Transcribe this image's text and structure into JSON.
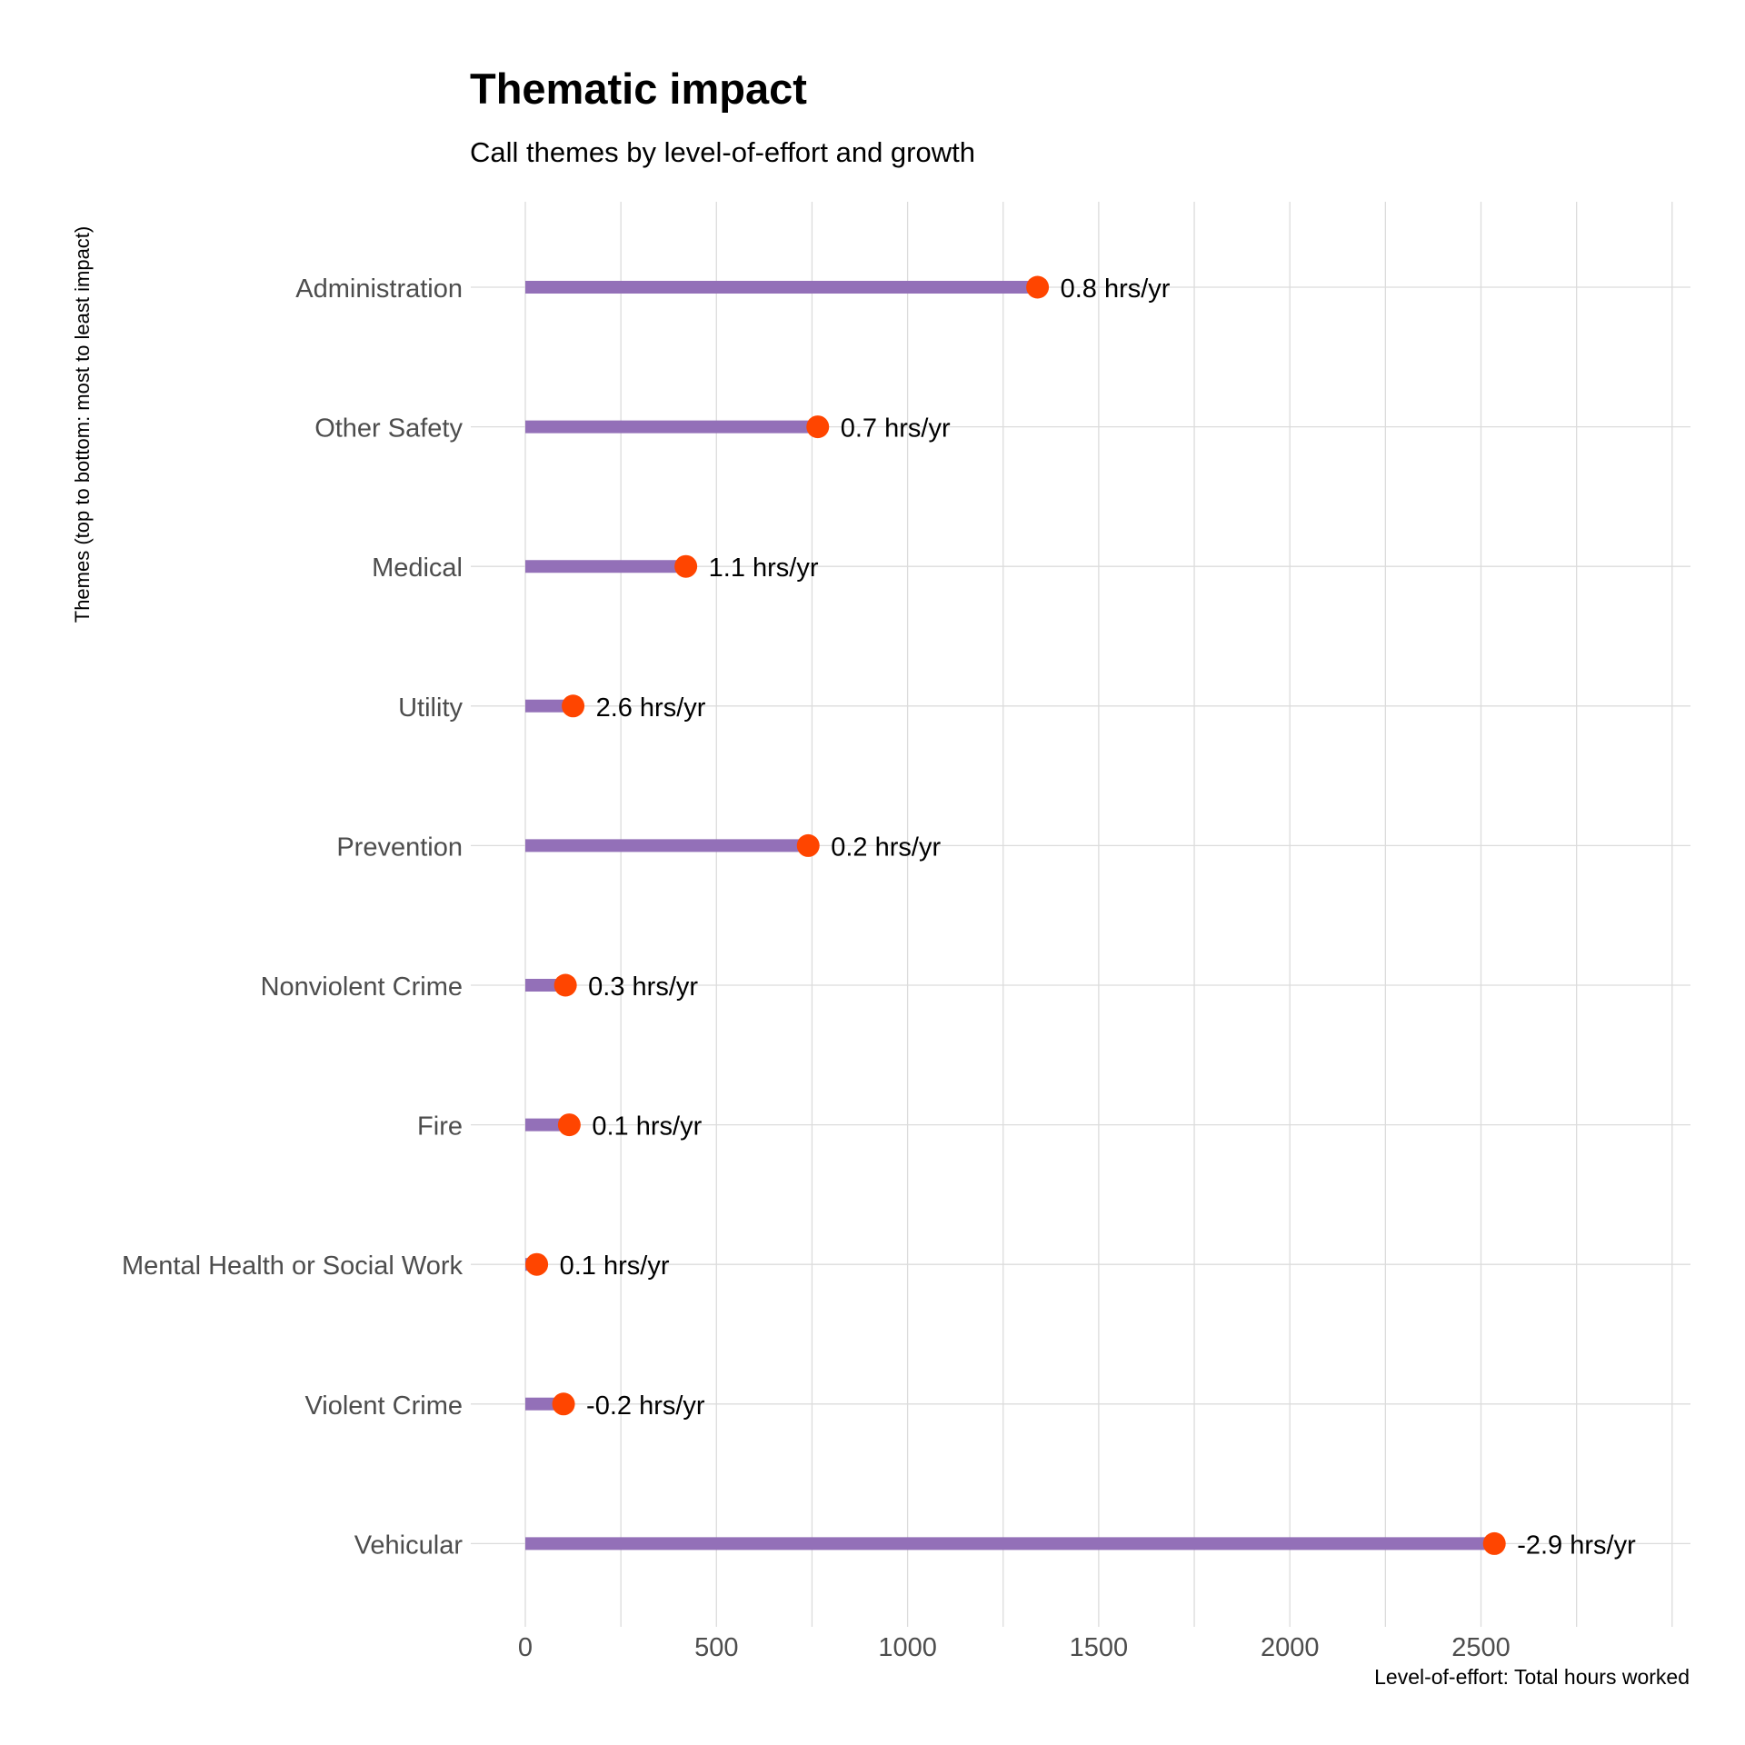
{
  "chart_data": {
    "type": "lollipop",
    "orientation": "horizontal",
    "title": "Thematic impact",
    "subtitle": "Call themes by level-of-effort and growth",
    "xlabel": "Level-of-effort: Total hours worked",
    "ylabel": "Themes (top to bottom: most to least impact)",
    "xlim": [
      0,
      3000
    ],
    "xticks": [
      0,
      500,
      1000,
      1500,
      2000,
      2500
    ],
    "grid": true,
    "categories": [
      "Administration",
      "Other Safety",
      "Medical",
      "Utility",
      "Prevention",
      "Nonviolent Crime",
      "Fire",
      "Mental Health or Social Work",
      "Violent Crime",
      "Vehicular"
    ],
    "values": [
      1340,
      765,
      420,
      125,
      740,
      105,
      115,
      30,
      100,
      2535
    ],
    "labels": [
      "0.8 hrs/yr",
      "0.7 hrs/yr",
      "1.1 hrs/yr",
      "2.6 hrs/yr",
      "0.2 hrs/yr",
      "0.3 hrs/yr",
      "0.1 hrs/yr",
      "0.1 hrs/yr",
      "-0.2 hrs/yr",
      "-2.9 hrs/yr"
    ],
    "colors": {
      "stem": "#9370B8",
      "point": "#FF4500",
      "grid": "#DCDCDC",
      "axis_text": "#4D4D4D"
    }
  }
}
